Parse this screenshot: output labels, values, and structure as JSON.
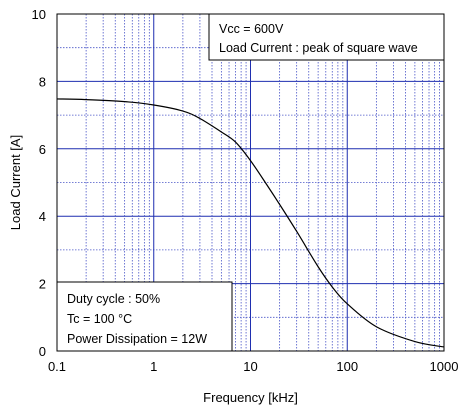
{
  "chart_data": {
    "type": "line",
    "title": "",
    "xlabel": "Frequency [kHz]",
    "ylabel": "Load Current [A]",
    "xscale": "log",
    "xlim": [
      0.1,
      1000
    ],
    "ylim": [
      0,
      10
    ],
    "x_ticks": [
      "0.1",
      "1",
      "10",
      "100",
      "1000"
    ],
    "y_ticks": [
      "0",
      "2",
      "4",
      "6",
      "8",
      "10"
    ],
    "grid": true,
    "series": [
      {
        "color": "#000000",
        "x": [
          0.1,
          0.2,
          0.5,
          1,
          2,
          3,
          5,
          7,
          10,
          15,
          20,
          30,
          50,
          70,
          100,
          200,
          500,
          1000
        ],
        "y": [
          7.48,
          7.46,
          7.4,
          7.3,
          7.12,
          6.9,
          6.5,
          6.2,
          5.65,
          4.9,
          4.35,
          3.55,
          2.5,
          1.9,
          1.4,
          0.72,
          0.28,
          0.12
        ]
      }
    ],
    "annotations": {
      "top": [
        "Vcc = 600V",
        "Load Current : peak of square wave"
      ],
      "bottom": [
        "Duty cycle : 50%",
        "Tc = 100 °C",
        "Power Dissipation = 12W"
      ]
    }
  },
  "colors": {
    "major_grid": "#1f2fb0",
    "minor_grid": "#4a56c8",
    "curve": "#000000",
    "frame": "#000000"
  }
}
